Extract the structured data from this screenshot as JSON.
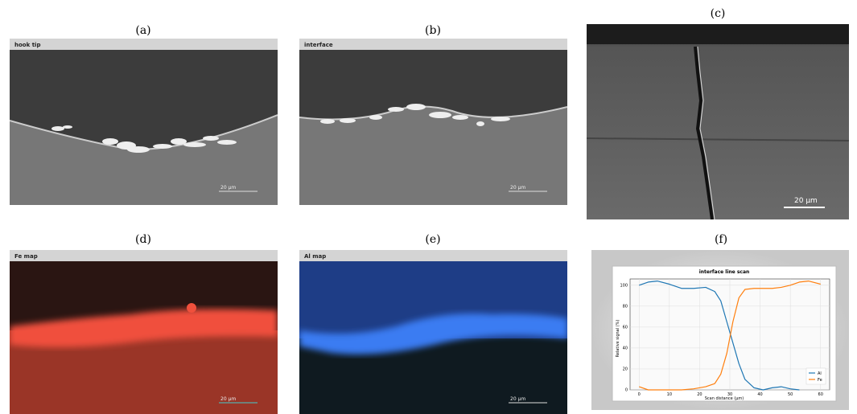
{
  "panels": [
    {
      "label": "(a)",
      "header": "hook tip",
      "scale_bar": "20 µm"
    },
    {
      "label": "(b)",
      "header": "interface",
      "scale_bar": "20 µm"
    },
    {
      "label": "(c)",
      "scale_bar": "20 µm"
    },
    {
      "label": "(d)",
      "header": "Fe map",
      "scale_bar": "20 µm"
    },
    {
      "label": "(e)",
      "header": "Al map",
      "scale_bar": "20 µm"
    },
    {
      "label": "(f)"
    }
  ],
  "chart_data": {
    "type": "line",
    "title": "interface line scan",
    "x_label": "Scan distance (µm)",
    "y_label": "Relative signal (%)",
    "x": [
      0,
      3,
      6,
      10,
      14,
      18,
      22,
      25,
      27,
      29,
      31,
      33,
      35,
      38,
      41,
      44,
      47,
      50,
      53,
      56,
      60
    ],
    "series": [
      {
        "name": "Al",
        "color": "#1f77b4",
        "values": [
          100,
          103,
          104,
          101,
          97,
          97,
          98,
          94,
          85,
          65,
          45,
          25,
          10,
          2,
          0,
          2,
          3,
          1,
          0,
          null,
          null
        ]
      },
      {
        "name": "Fe",
        "color": "#ff7f0e",
        "values": [
          3,
          0,
          0,
          0,
          0,
          1,
          3,
          6,
          15,
          35,
          65,
          88,
          96,
          97,
          97,
          97,
          98,
          100,
          103,
          104,
          101
        ]
      }
    ],
    "xlim": [
      -3,
      63
    ],
    "ylim": [
      0,
      106
    ],
    "xticks": [
      0,
      10,
      20,
      30,
      40,
      50,
      60
    ],
    "yticks": [
      0,
      20,
      40,
      60,
      80,
      100
    ],
    "grid": true,
    "legend": "lower right"
  }
}
